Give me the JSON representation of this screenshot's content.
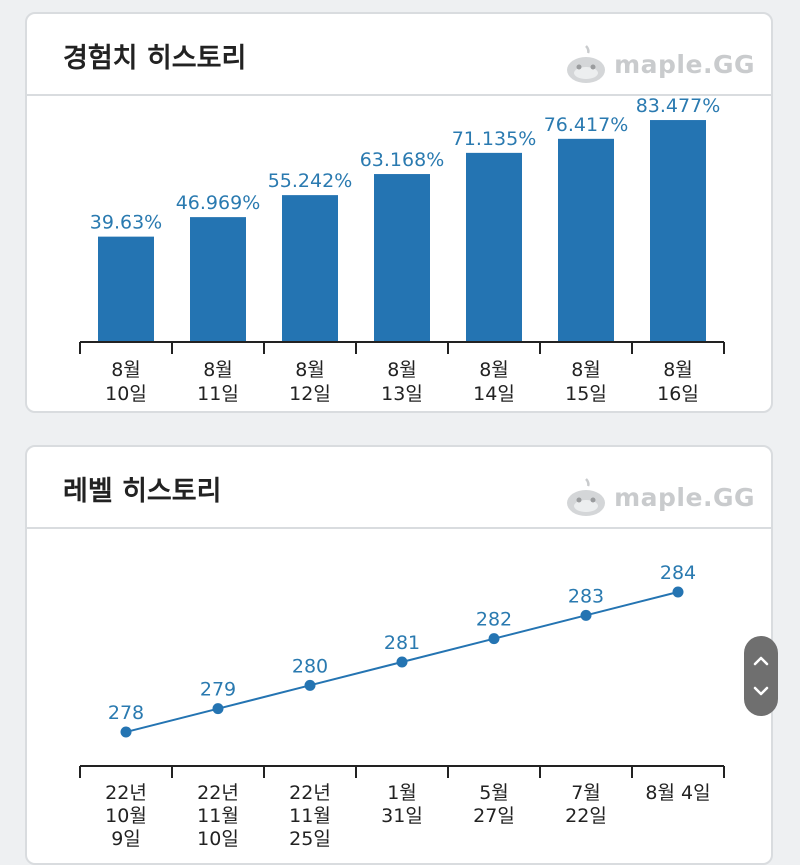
{
  "exp_card": {
    "title": "경험치 히스토리",
    "watermark": "maple.GG"
  },
  "level_card": {
    "title": "레벨 히스토리",
    "watermark": "maple.GG"
  },
  "chart_data": [
    {
      "type": "bar",
      "title": "경험치 히스토리",
      "categories": [
        "8월\n10일",
        "8월\n11일",
        "8월\n12일",
        "8월\n13일",
        "8월\n14일",
        "8월\n15일",
        "8월\n16일"
      ],
      "values": [
        39.63,
        46.969,
        55.242,
        63.168,
        71.135,
        76.417,
        83.477
      ],
      "data_labels": [
        "39.63%",
        "46.969%",
        "55.242%",
        "63.168%",
        "71.135%",
        "76.417%",
        "83.477%"
      ],
      "ylim": [
        0,
        85
      ],
      "color": "#2474b2",
      "label_color": "#2a7ab0"
    },
    {
      "type": "line",
      "title": "레벨 히스토리",
      "categories": [
        "22년\n10월\n9일",
        "22년\n11월\n10일",
        "22년\n11월\n25일",
        "1월\n31일",
        "5월\n27일",
        "7월\n22일",
        "8월 4일"
      ],
      "values": [
        278,
        279,
        280,
        281,
        282,
        283,
        284
      ],
      "data_labels": [
        "278",
        "279",
        "280",
        "281",
        "282",
        "283",
        "284"
      ],
      "ylim": [
        275,
        285
      ],
      "color": "#2474b2",
      "label_color": "#2a7ab0"
    }
  ]
}
